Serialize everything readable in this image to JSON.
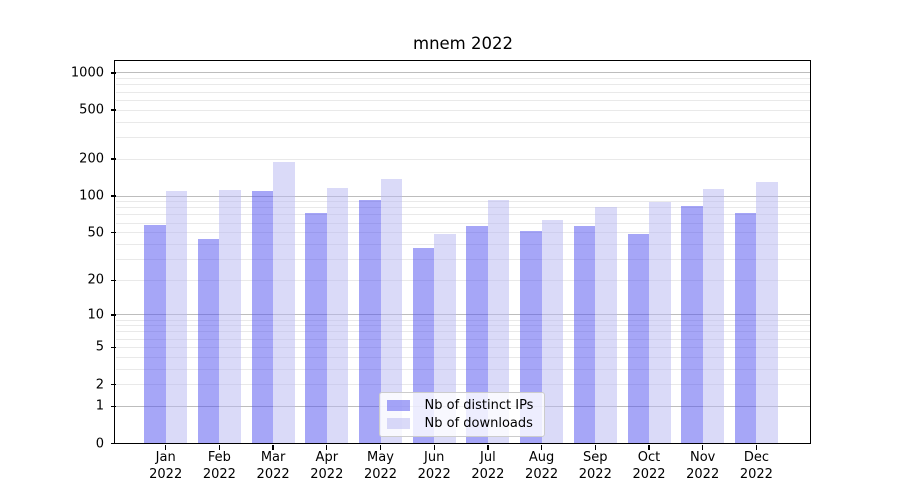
{
  "chart_data": {
    "type": "bar",
    "title": "mnem 2022",
    "categories": [
      "Jan 2022",
      "Feb 2022",
      "Mar 2022",
      "Apr 2022",
      "May 2022",
      "Jun 2022",
      "Jul 2022",
      "Aug 2022",
      "Sep 2022",
      "Oct 2022",
      "Nov 2022",
      "Dec 2022"
    ],
    "series": [
      {
        "name": "Nb of distinct IPs",
        "values": [
          58,
          44,
          110,
          73,
          93,
          37,
          57,
          52,
          57,
          49,
          83,
          73
        ]
      },
      {
        "name": "Nb of downloads",
        "values": [
          110,
          112,
          190,
          116,
          138,
          49,
          93,
          64,
          82,
          90,
          114,
          130
        ]
      }
    ],
    "xlabel": "",
    "ylabel": "",
    "yscale": "log1p",
    "yticks": [
      0,
      1,
      2,
      5,
      10,
      20,
      50,
      100,
      200,
      500,
      1000
    ],
    "ylim": [
      0,
      1250
    ],
    "grid": "both",
    "legend_position": "lower-center"
  },
  "colors": {
    "distinct_ips_bar": "#5555f0",
    "downloads_bar": "#b9b9f2",
    "bar_alpha": 0.52,
    "grid_major": "#bdbdbd",
    "grid_minor": "#e9e9e9",
    "axis": "#000000",
    "legend_border": "#cccccc",
    "text": "#000000"
  }
}
